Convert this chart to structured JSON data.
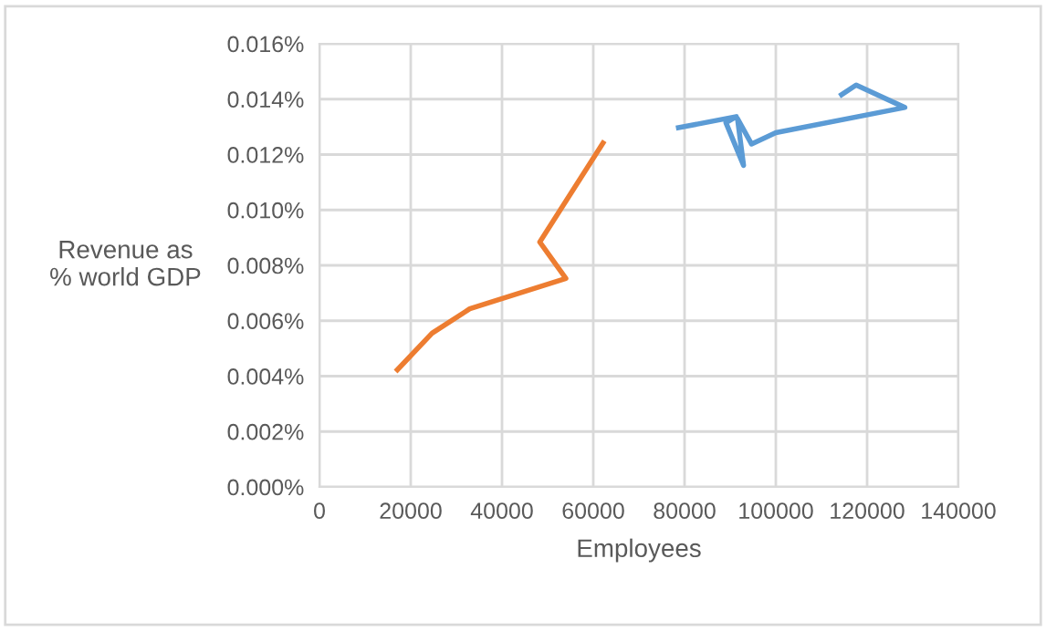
{
  "chart_data": {
    "type": "line",
    "xlabel": "Employees",
    "ylabel": "Revenue as\n% world GDP",
    "series": [
      {
        "color": "#ed7d31",
        "x": [
          17080,
          24680,
          32930,
          54000,
          48270,
          62130
        ],
        "values": [
          0.00423,
          0.00555,
          0.00643,
          0.00753,
          0.00884,
          0.01242
        ]
      },
      {
        "color": "#5b9bd5",
        "x": [
          78670,
          91330,
          89070,
          92930,
          91600,
          94670,
          100000,
          128270,
          117600,
          114400
        ],
        "values": [
          0.01297,
          0.01337,
          0.01315,
          0.01161,
          0.0133,
          0.01238,
          0.01279,
          0.0137,
          0.01451,
          0.01416
        ]
      }
    ],
    "xlim": [
      0,
      140000
    ],
    "xticks": [
      0,
      20000,
      40000,
      60000,
      80000,
      100000,
      120000,
      140000
    ],
    "ylim": [
      0,
      0.016
    ],
    "yticks": [
      {
        "value": 0,
        "label": "0.000%"
      },
      {
        "value": 0.002,
        "label": "0.002%"
      },
      {
        "value": 0.004,
        "label": "0.004%"
      },
      {
        "value": 0.006,
        "label": "0.006%"
      },
      {
        "value": 0.008,
        "label": "0.008%"
      },
      {
        "value": 0.01,
        "label": "0.010%"
      },
      {
        "value": 0.012,
        "label": "0.012%"
      },
      {
        "value": 0.014,
        "label": "0.014%"
      },
      {
        "value": 0.016,
        "label": "0.016%"
      }
    ],
    "grid": true,
    "marker": "none",
    "line_style": "solid"
  }
}
